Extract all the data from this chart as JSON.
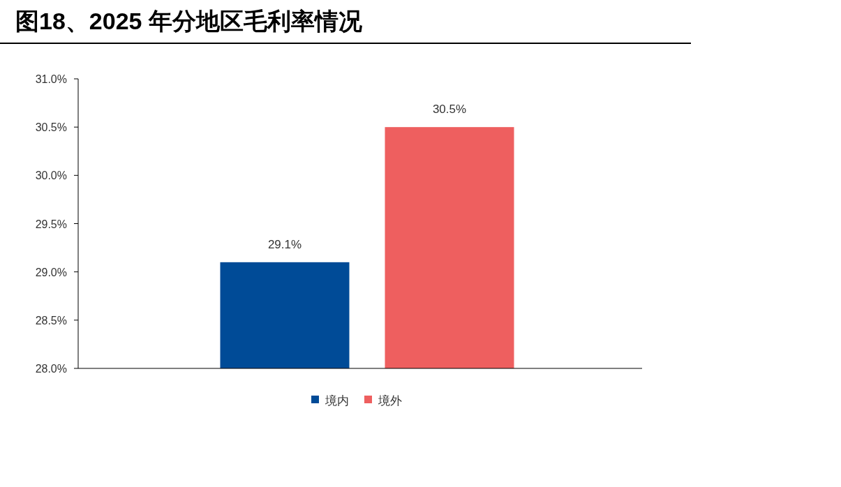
{
  "chart_data": {
    "type": "bar",
    "title": "图18、2025 年分地区毛利率情况",
    "categories": [
      null
    ],
    "series": [
      {
        "name": "境内",
        "color": "#004b97",
        "values": [
          29.1
        ],
        "value_labels": [
          "29.1%"
        ]
      },
      {
        "name": "境外",
        "color": "#ee5f5f",
        "values": [
          30.5
        ],
        "value_labels": [
          "30.5%"
        ]
      }
    ],
    "ylim": [
      28,
      31
    ],
    "yticks": [
      {
        "value": 28,
        "label": "28.0%"
      },
      {
        "value": 28.5,
        "label": "28.5%"
      },
      {
        "value": 29,
        "label": "29.0%"
      },
      {
        "value": 29.5,
        "label": "29.5%"
      },
      {
        "value": 30,
        "label": "30.0%"
      },
      {
        "value": 30.5,
        "label": "30.5%"
      },
      {
        "value": 31,
        "label": "31.0%"
      }
    ],
    "legend": "bottom",
    "grid": false
  }
}
